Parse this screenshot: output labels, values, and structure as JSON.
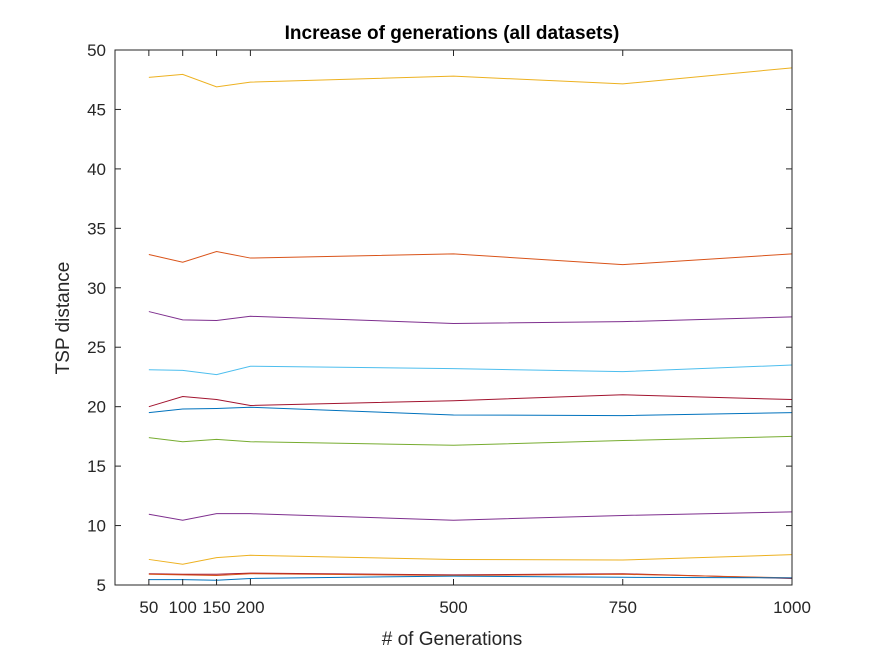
{
  "chart_data": {
    "type": "line",
    "title": "Increase of generations (all datasets)",
    "xlabel": "# of Generations",
    "ylabel": "TSP distance",
    "x": [
      50,
      100,
      150,
      200,
      500,
      750,
      1000
    ],
    "x_ticks": [
      "50",
      "100",
      "150",
      "200",
      "500",
      "750",
      "1000"
    ],
    "xlim": [
      0,
      1000
    ],
    "ylim": [
      5,
      50
    ],
    "y_ticks": [
      "5",
      "10",
      "15",
      "20",
      "25",
      "30",
      "35",
      "40",
      "45",
      "50"
    ],
    "grid": false,
    "legend": "none",
    "series": [
      {
        "color": "#EDB120",
        "values": [
          47.7,
          47.95,
          46.9,
          47.3,
          47.8,
          47.15,
          48.5
        ]
      },
      {
        "color": "#D95319",
        "values": [
          32.8,
          32.15,
          33.05,
          32.5,
          32.85,
          31.95,
          32.85
        ]
      },
      {
        "color": "#7E2F8E",
        "values": [
          28.0,
          27.3,
          27.25,
          27.6,
          27.0,
          27.15,
          27.55
        ]
      },
      {
        "color": "#4DBEEE",
        "values": [
          23.1,
          23.05,
          22.7,
          23.4,
          23.2,
          22.95,
          23.5
        ]
      },
      {
        "color": "#A2142F",
        "values": [
          20.0,
          20.85,
          20.6,
          20.1,
          20.5,
          21.0,
          20.6
        ]
      },
      {
        "color": "#0072BD",
        "values": [
          19.5,
          19.8,
          19.85,
          19.95,
          19.3,
          19.25,
          19.5
        ]
      },
      {
        "color": "#77AC30",
        "values": [
          17.4,
          17.05,
          17.25,
          17.05,
          16.75,
          17.15,
          17.5
        ]
      },
      {
        "color": "#7E2F8E",
        "values": [
          10.95,
          10.45,
          11.0,
          11.0,
          10.45,
          10.85,
          11.15
        ]
      },
      {
        "color": "#EDB120",
        "values": [
          7.15,
          6.75,
          7.3,
          7.5,
          7.15,
          7.1,
          7.55
        ]
      },
      {
        "color": "#A2142F",
        "values": [
          5.95,
          5.9,
          5.9,
          6.0,
          5.85,
          5.95,
          5.55
        ]
      },
      {
        "color": "#D95319",
        "values": [
          5.9,
          5.85,
          5.8,
          5.95,
          5.8,
          5.9,
          5.6
        ]
      },
      {
        "color": "#0072BD",
        "values": [
          5.45,
          5.45,
          5.4,
          5.55,
          5.75,
          5.65,
          5.6
        ]
      }
    ]
  }
}
